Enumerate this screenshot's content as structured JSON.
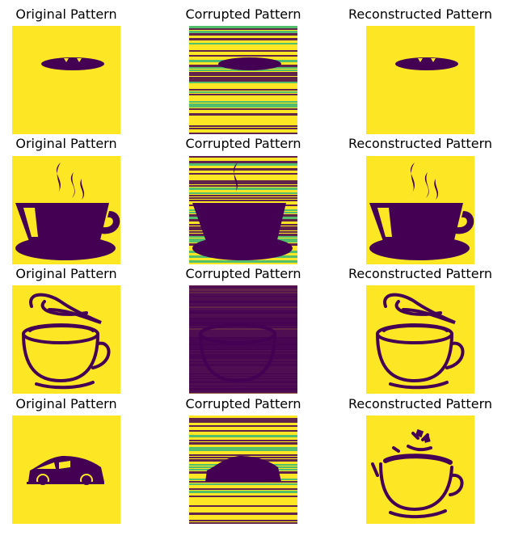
{
  "column_titles": [
    "Original Pattern",
    "Corrupted Pattern",
    "Reconstructed Pattern"
  ],
  "colors": {
    "background": "#fde725",
    "foreground": "#440154",
    "teal": "#35b779",
    "mid": "#31688e"
  },
  "rows": [
    {
      "original": "ufo-ellipse",
      "corrupted": "striped-ufo",
      "reconstructed": "ufo-ellipse"
    },
    {
      "original": "steaming-cup-solid",
      "corrupted": "striped-cup",
      "reconstructed": "steaming-cup-solid"
    },
    {
      "original": "steaming-cup-outline",
      "corrupted": "striped-cup-outline",
      "reconstructed": "steaming-cup-outline"
    },
    {
      "original": "car",
      "corrupted": "striped-car",
      "reconstructed": "broken-cup-outline"
    }
  ]
}
